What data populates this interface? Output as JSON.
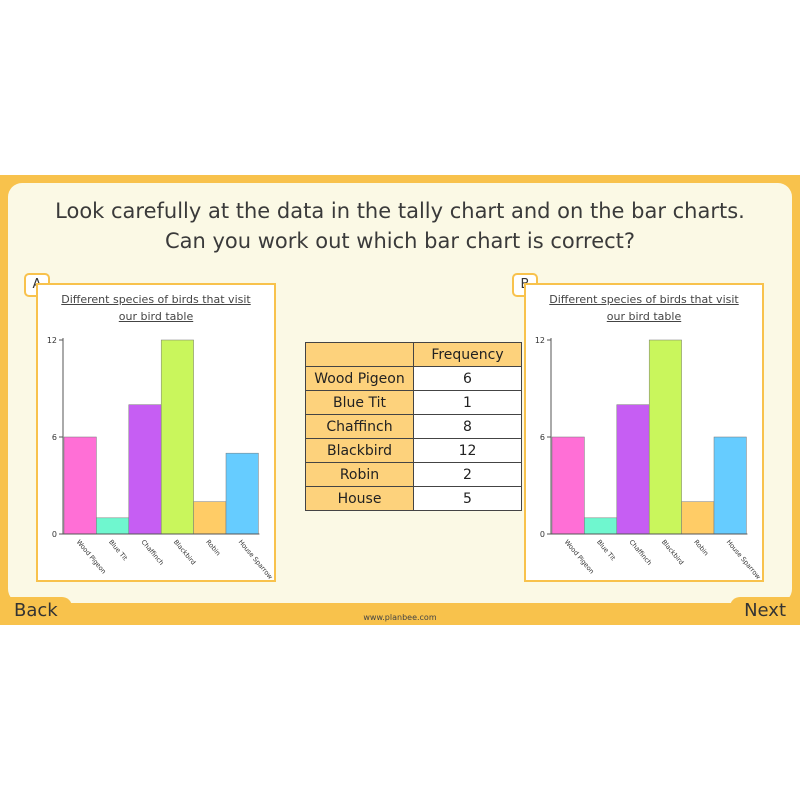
{
  "question": [
    "Look carefully at the data in the tally chart and on the bar charts.",
    "Can you work out which bar chart is correct?"
  ],
  "chart_data": [
    {
      "type": "bar",
      "panel": "A",
      "title": "Different species of birds that visit our bird table",
      "categories": [
        "Wood Pigeon",
        "Blue Tit",
        "Chaffinch",
        "Blackbird",
        "Robin",
        "House Sparrow"
      ],
      "values": [
        6,
        1,
        8,
        12,
        2,
        5
      ],
      "colors": [
        "#ff6fd6",
        "#6ff7cf",
        "#c65ef3",
        "#c9f65c",
        "#ffcc66",
        "#66ccff"
      ],
      "ylim": [
        0,
        12
      ],
      "yticks": [
        0,
        6,
        12
      ]
    },
    {
      "type": "bar",
      "panel": "B",
      "title": "Different species of birds that visit our bird table",
      "categories": [
        "Wood Pigeon",
        "Blue Tit",
        "Chaffinch",
        "Blackbird",
        "Robin",
        "House Sparrow"
      ],
      "values": [
        6,
        1,
        8,
        12,
        2,
        6
      ],
      "colors": [
        "#ff6fd6",
        "#6ff7cf",
        "#c65ef3",
        "#c9f65c",
        "#ffcc66",
        "#66ccff"
      ],
      "ylim": [
        0,
        12
      ],
      "yticks": [
        0,
        6,
        12
      ]
    }
  ],
  "table": {
    "header": "Frequency",
    "rows": [
      [
        "Wood Pigeon",
        "6"
      ],
      [
        "Blue Tit",
        "1"
      ],
      [
        "Chaffinch",
        "8"
      ],
      [
        "Blackbird",
        "12"
      ],
      [
        "Robin",
        "2"
      ],
      [
        "House",
        "5"
      ]
    ]
  },
  "navigation": {
    "back": "Back",
    "next": "Next"
  },
  "footer": "www.planbee.com"
}
